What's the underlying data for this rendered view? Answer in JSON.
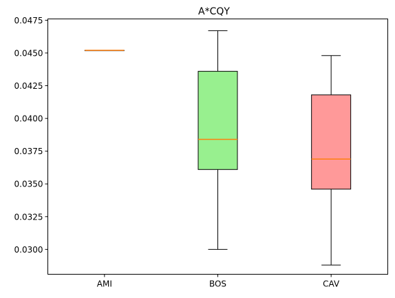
{
  "chart_data": {
    "type": "boxplot",
    "title": "A*CQY",
    "xlabel": "",
    "ylabel": "",
    "categories": [
      "AMI",
      "BOS",
      "CAV"
    ],
    "ylim": [
      0.0281,
      0.0476
    ],
    "yticks": [
      0.03,
      0.0325,
      0.035,
      0.0375,
      0.04,
      0.0425,
      0.045,
      0.0475
    ],
    "ytick_labels": [
      "0.0300",
      "0.0325",
      "0.0350",
      "0.0375",
      "0.0400",
      "0.0425",
      "0.0450",
      "0.0475"
    ],
    "grid": false,
    "boxes": [
      {
        "category": "AMI",
        "whisker_low": 0.0452,
        "q1": 0.0452,
        "median": 0.0452,
        "q3": 0.0452,
        "whisker_high": 0.0452,
        "color": "#add8e6"
      },
      {
        "category": "BOS",
        "whisker_low": 0.03,
        "q1": 0.0361,
        "median": 0.0384,
        "q3": 0.0436,
        "whisker_high": 0.0467,
        "color": "#98f08f"
      },
      {
        "category": "CAV",
        "whisker_low": 0.0288,
        "q1": 0.0346,
        "median": 0.0369,
        "q3": 0.0418,
        "whisker_high": 0.0448,
        "color": "#ff9999"
      }
    ],
    "median_color": "#ff7f0e"
  }
}
